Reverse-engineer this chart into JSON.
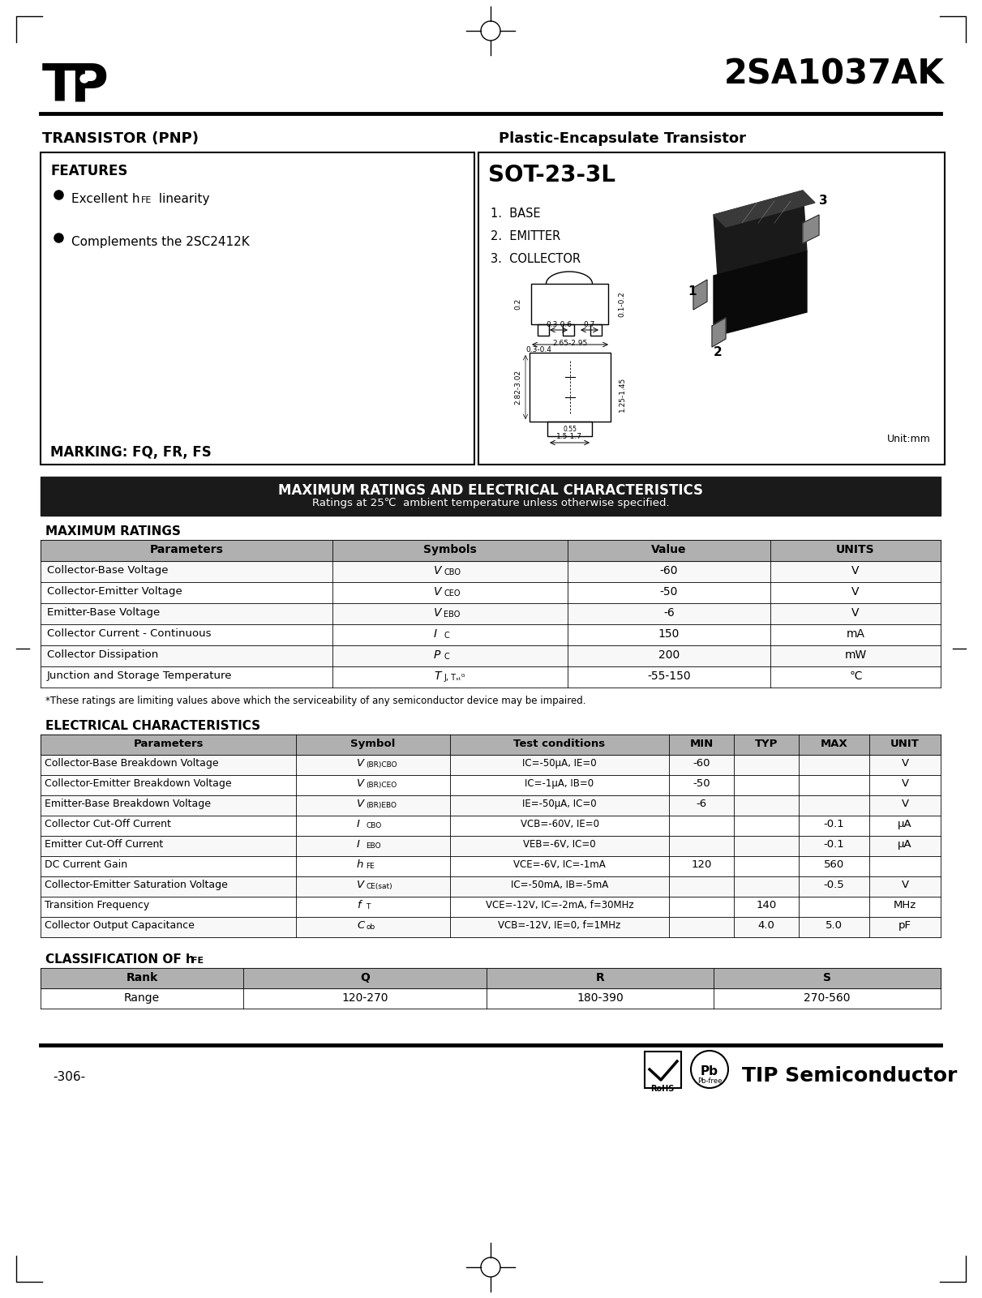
{
  "title": "2SA1037AK",
  "company": "TIP Semiconductor",
  "page_num": "-306-",
  "transistor_type": "TRANSISTOR (PNP)",
  "package_type": "Plastic-Encapsulate Transistor",
  "features_title": "FEATURES",
  "marking": "MARKING: FQ, FR, FS",
  "package_name": "SOT-23-3L",
  "package_pins": [
    "1.  BASE",
    "2.  EMITTER",
    "3.  COLLECTOR"
  ],
  "max_ratings_title": "MAXIMUM RATINGS AND ELECTRICAL CHARACTERISTICS",
  "max_ratings_subtitle": "Ratings at 25℃  ambient temperature unless otherwise specified.",
  "max_ratings_section": "MAXIMUM RATINGS",
  "max_ratings_headers": [
    "Parameters",
    "Symbols",
    "Value",
    "UNITS"
  ],
  "mr_params": [
    "Collector-Base Voltage",
    "Collector-Emitter Voltage",
    "Emitter-Base Voltage",
    "Collector Current - Continuous",
    "Collector Dissipation",
    "Junction and Storage Temperature"
  ],
  "mr_sym_main": [
    "V",
    "V",
    "V",
    "I",
    "P",
    "T"
  ],
  "mr_sym_sub": [
    "CBO",
    "CEO",
    "EBO",
    "C",
    "C",
    "J, Tₛₜᴳ"
  ],
  "mr_values": [
    "-60",
    "-50",
    "-6",
    "150",
    "200",
    "-55-150"
  ],
  "mr_units": [
    "V",
    "V",
    "V",
    "mA",
    "mW",
    "℃"
  ],
  "note": "*These ratings are limiting values above which the serviceability of any semiconductor device may be impaired.",
  "elec_chars_title": "ELECTRICAL CHARACTERISTICS",
  "elec_chars_headers": [
    "Parameters",
    "Symbol",
    "Test conditions",
    "MIN",
    "TYP",
    "MAX",
    "UNIT"
  ],
  "ec_params": [
    "Collector-Base Breakdown Voltage",
    "Collector-Emitter Breakdown Voltage",
    "Emitter-Base Breakdown Voltage",
    "Collector Cut-Off Current",
    "Emitter Cut-Off Current",
    "DC Current Gain",
    "Collector-Emitter Saturation Voltage",
    "Transition Frequency",
    "Collector Output Capacitance"
  ],
  "ec_sym_main": [
    "V",
    "V",
    "V",
    "I",
    "I",
    "h",
    "V",
    "f",
    "C"
  ],
  "ec_sym_sub": [
    "(BR)CBO",
    "(BR)CEO",
    "(BR)EBO",
    "CBO",
    "EBO",
    "FE",
    "CE(sat)",
    "T",
    "ob"
  ],
  "ec_test": [
    "IC=-50μA, IE=0",
    "IC=-1μA, IB=0",
    "IE=-50μA, IC=0",
    "VCB=-60V, IE=0",
    "VEB=-6V, IC=0",
    "VCE=-6V, IC=-1mA",
    "IC=-50mA, IB=-5mA",
    "VCE=-12V, IC=-2mA, f=30MHz",
    "VCB=-12V, IE=0, f=1MHz"
  ],
  "ec_min": [
    "-60",
    "-50",
    "-6",
    "",
    "",
    "120",
    "",
    "",
    ""
  ],
  "ec_typ": [
    "",
    "",
    "",
    "",
    "",
    "",
    "",
    "140",
    "4.0"
  ],
  "ec_max": [
    "",
    "",
    "",
    "-0.1",
    "-0.1",
    "560",
    "-0.5",
    "",
    "5.0"
  ],
  "ec_unit": [
    "V",
    "V",
    "V",
    "μA",
    "μA",
    "",
    "V",
    "MHz",
    "pF"
  ],
  "classification_title": "CLASSIFICATION OF h",
  "classification_title_sub": "FE",
  "classification_headers": [
    "Rank",
    "Q",
    "R",
    "S"
  ],
  "classification_range": [
    "Range",
    "120-270",
    "180-390",
    "270-560"
  ],
  "bg_color": "#ffffff"
}
